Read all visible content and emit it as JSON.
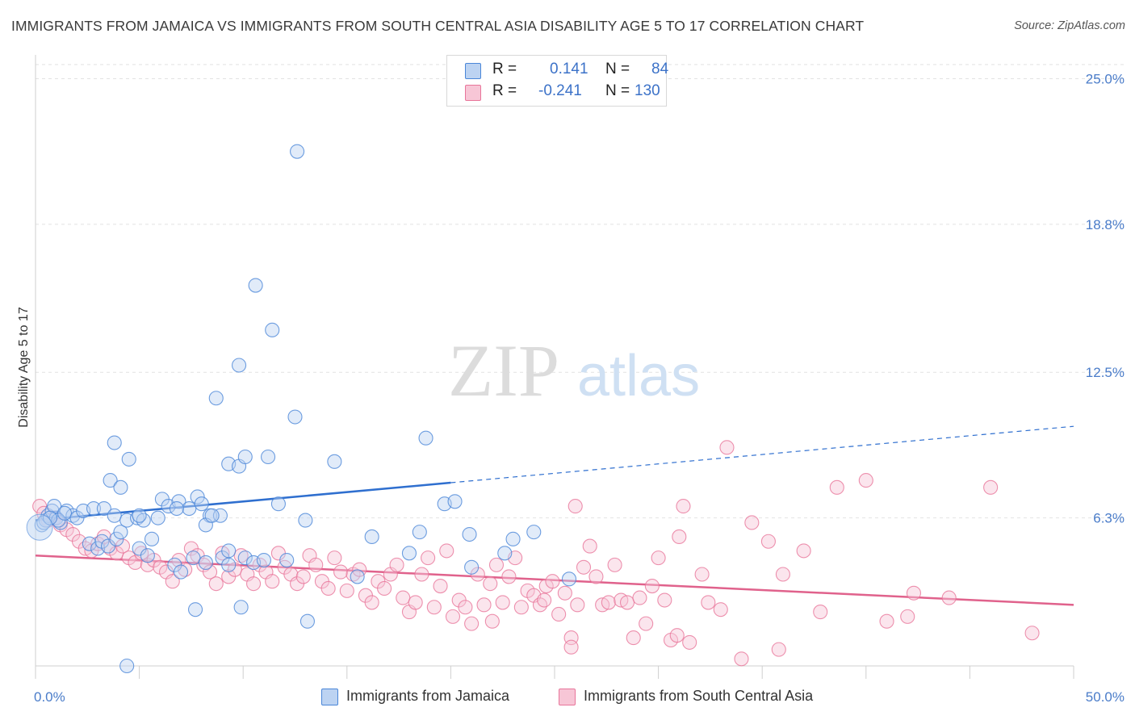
{
  "title": "IMMIGRANTS FROM JAMAICA VS IMMIGRANTS FROM SOUTH CENTRAL ASIA DISABILITY AGE 5 TO 17 CORRELATION CHART",
  "source": "Source: ZipAtlas.com",
  "watermark": {
    "zip": "ZIP",
    "atlas": "atlas"
  },
  "legend": {
    "r_label": "R =",
    "n_label": "N =",
    "series": [
      {
        "r": "0.141",
        "n": "84",
        "color": "#4a86d8",
        "fill": "#bcd3f2"
      },
      {
        "r": "-0.241",
        "n": "130",
        "color": "#e8759a",
        "fill": "#f7c6d6"
      }
    ]
  },
  "chart_data": {
    "type": "scatter",
    "title": "IMMIGRANTS FROM JAMAICA VS IMMIGRANTS FROM SOUTH CENTRAL ASIA DISABILITY AGE 5 TO 17 CORRELATION CHART",
    "xlabel": "",
    "ylabel": "Disability Age 5 to 17",
    "xlim": [
      0,
      50
    ],
    "ylim": [
      0,
      25.6
    ],
    "x_tick_labels": [
      "0.0%",
      "50.0%"
    ],
    "y_ticks": [
      6.3,
      12.5,
      18.8,
      25.0
    ],
    "y_tick_labels": [
      "6.3%",
      "12.5%",
      "18.8%",
      "25.0%"
    ],
    "grid": true,
    "legend_position": "top-center",
    "series": [
      {
        "name": "Immigrants from Jamaica",
        "color": "#4a86d8",
        "trend": {
          "x_solid": [
            0,
            20
          ],
          "y_solid": [
            6.2,
            7.8
          ],
          "x_dashed": [
            20,
            50
          ],
          "y_dashed": [
            7.8,
            10.2
          ]
        },
        "points": [
          [
            0.3,
            6.0
          ],
          [
            0.5,
            6.2
          ],
          [
            0.6,
            6.4
          ],
          [
            0.8,
            6.6
          ],
          [
            1.0,
            6.3
          ],
          [
            1.2,
            6.1
          ],
          [
            1.5,
            6.6
          ],
          [
            1.8,
            6.4
          ],
          [
            0.4,
            6.1
          ],
          [
            0.9,
            6.8
          ],
          [
            1.1,
            6.2
          ],
          [
            1.4,
            6.5
          ],
          [
            0.7,
            6.3
          ],
          [
            2.0,
            6.3
          ],
          [
            2.3,
            6.6
          ],
          [
            2.8,
            6.7
          ],
          [
            3.3,
            6.7
          ],
          [
            3.8,
            6.4
          ],
          [
            2.6,
            5.2
          ],
          [
            3.0,
            5.0
          ],
          [
            3.2,
            5.3
          ],
          [
            3.5,
            5.1
          ],
          [
            3.9,
            5.4
          ],
          [
            4.1,
            5.7
          ],
          [
            4.4,
            6.2
          ],
          [
            4.9,
            6.3
          ],
          [
            5.2,
            6.2
          ],
          [
            5.6,
            5.4
          ],
          [
            5.9,
            6.3
          ],
          [
            6.1,
            7.1
          ],
          [
            6.4,
            6.8
          ],
          [
            6.9,
            7.0
          ],
          [
            7.4,
            6.7
          ],
          [
            7.8,
            7.2
          ],
          [
            8.0,
            6.9
          ],
          [
            8.4,
            6.4
          ],
          [
            8.9,
            6.4
          ],
          [
            5.0,
            5.0
          ],
          [
            5.4,
            4.7
          ],
          [
            6.7,
            4.3
          ],
          [
            7.0,
            4.0
          ],
          [
            7.6,
            4.6
          ],
          [
            8.2,
            4.4
          ],
          [
            9.0,
            4.6
          ],
          [
            9.3,
            4.3
          ],
          [
            10.1,
            4.6
          ],
          [
            10.5,
            4.4
          ],
          [
            11.0,
            4.5
          ],
          [
            3.6,
            7.9
          ],
          [
            4.1,
            7.6
          ],
          [
            3.8,
            9.5
          ],
          [
            4.5,
            8.8
          ],
          [
            5.0,
            6.4
          ],
          [
            6.8,
            6.7
          ],
          [
            8.2,
            6.0
          ],
          [
            8.5,
            6.4
          ],
          [
            9.3,
            4.9
          ],
          [
            8.7,
            11.4
          ],
          [
            9.3,
            8.6
          ],
          [
            9.8,
            8.5
          ],
          [
            10.1,
            8.9
          ],
          [
            11.2,
            8.9
          ],
          [
            9.8,
            12.8
          ],
          [
            10.6,
            16.2
          ],
          [
            11.4,
            14.3
          ],
          [
            12.5,
            10.6
          ],
          [
            11.7,
            6.9
          ],
          [
            12.1,
            4.5
          ],
          [
            13.0,
            6.2
          ],
          [
            14.4,
            8.7
          ],
          [
            12.6,
            21.9
          ],
          [
            15.5,
            3.8
          ],
          [
            16.2,
            5.5
          ],
          [
            18.0,
            4.8
          ],
          [
            18.8,
            9.7
          ],
          [
            18.5,
            5.7
          ],
          [
            19.7,
            6.9
          ],
          [
            20.9,
            5.6
          ],
          [
            20.2,
            7.0
          ],
          [
            21.0,
            4.2
          ],
          [
            22.6,
            4.8
          ],
          [
            23.0,
            5.4
          ],
          [
            24.0,
            5.7
          ],
          [
            25.7,
            3.7
          ]
        ],
        "extra_points": [
          [
            7.7,
            2.4
          ],
          [
            9.9,
            2.5
          ],
          [
            13.1,
            1.9
          ],
          [
            4.4,
            0.0
          ]
        ]
      },
      {
        "name": "Immigrants from South Central Asia",
        "color": "#e8759a",
        "trend": {
          "x": [
            0,
            50
          ],
          "y": [
            4.7,
            2.6
          ]
        },
        "points": [
          [
            0.2,
            6.8
          ],
          [
            0.4,
            6.5
          ],
          [
            0.6,
            6.2
          ],
          [
            0.9,
            6.3
          ],
          [
            1.2,
            6.0
          ],
          [
            1.5,
            5.8
          ],
          [
            1.8,
            5.6
          ],
          [
            2.1,
            5.3
          ],
          [
            2.4,
            5.0
          ],
          [
            2.7,
            4.9
          ],
          [
            3.0,
            5.2
          ],
          [
            3.3,
            5.5
          ],
          [
            3.6,
            5.0
          ],
          [
            3.9,
            4.8
          ],
          [
            4.2,
            5.1
          ],
          [
            4.5,
            4.6
          ],
          [
            4.8,
            4.4
          ],
          [
            5.1,
            4.8
          ],
          [
            5.4,
            4.3
          ],
          [
            5.7,
            4.5
          ],
          [
            6.0,
            4.2
          ],
          [
            6.3,
            4.0
          ],
          [
            6.6,
            3.6
          ],
          [
            6.9,
            4.5
          ],
          [
            7.2,
            4.1
          ],
          [
            7.5,
            5.0
          ],
          [
            7.8,
            4.7
          ],
          [
            8.1,
            4.3
          ],
          [
            8.4,
            4.0
          ],
          [
            8.7,
            3.5
          ],
          [
            9.0,
            4.8
          ],
          [
            9.3,
            3.8
          ],
          [
            9.6,
            4.1
          ],
          [
            9.9,
            4.7
          ],
          [
            10.2,
            3.9
          ],
          [
            10.5,
            3.5
          ],
          [
            10.8,
            4.3
          ],
          [
            11.1,
            4.0
          ],
          [
            11.4,
            3.6
          ],
          [
            11.7,
            4.8
          ],
          [
            12.0,
            4.2
          ],
          [
            12.3,
            3.9
          ],
          [
            12.6,
            3.5
          ],
          [
            12.9,
            3.8
          ],
          [
            13.2,
            4.7
          ],
          [
            13.5,
            4.3
          ],
          [
            13.8,
            3.6
          ],
          [
            14.1,
            3.3
          ],
          [
            14.4,
            4.6
          ],
          [
            14.7,
            4.0
          ],
          [
            15.0,
            3.2
          ],
          [
            15.3,
            3.9
          ],
          [
            15.6,
            4.1
          ],
          [
            15.9,
            3.0
          ],
          [
            16.2,
            2.7
          ],
          [
            16.5,
            3.6
          ],
          [
            16.8,
            3.3
          ],
          [
            17.1,
            3.9
          ],
          [
            17.4,
            4.3
          ],
          [
            17.7,
            2.9
          ],
          [
            18.0,
            2.3
          ],
          [
            18.3,
            2.7
          ],
          [
            18.6,
            3.9
          ],
          [
            18.9,
            4.6
          ],
          [
            19.2,
            2.5
          ],
          [
            19.5,
            3.4
          ],
          [
            19.8,
            4.9
          ],
          [
            20.1,
            2.1
          ],
          [
            20.4,
            2.8
          ],
          [
            20.7,
            2.5
          ],
          [
            21.0,
            1.8
          ],
          [
            21.3,
            3.9
          ],
          [
            21.6,
            2.6
          ],
          [
            21.9,
            3.5
          ],
          [
            22.2,
            4.3
          ],
          [
            22.5,
            2.7
          ],
          [
            22.8,
            3.8
          ],
          [
            23.1,
            4.6
          ],
          [
            23.4,
            2.5
          ],
          [
            23.7,
            3.2
          ],
          [
            24.0,
            3.0
          ],
          [
            24.3,
            2.6
          ],
          [
            24.6,
            3.4
          ],
          [
            24.9,
            3.6
          ],
          [
            25.2,
            2.2
          ],
          [
            25.5,
            3.1
          ],
          [
            25.8,
            1.2
          ],
          [
            26.1,
            2.6
          ],
          [
            26.4,
            4.2
          ],
          [
            26.7,
            5.1
          ],
          [
            27.0,
            3.8
          ],
          [
            27.3,
            2.6
          ],
          [
            27.6,
            2.7
          ],
          [
            27.9,
            4.3
          ],
          [
            28.2,
            2.8
          ],
          [
            28.5,
            2.7
          ],
          [
            28.8,
            1.2
          ],
          [
            29.1,
            2.9
          ],
          [
            29.4,
            1.8
          ],
          [
            29.7,
            3.4
          ],
          [
            30.0,
            4.6
          ],
          [
            30.3,
            2.8
          ],
          [
            30.6,
            1.1
          ],
          [
            30.9,
            1.3
          ],
          [
            31.2,
            6.8
          ],
          [
            31.5,
            1.0
          ],
          [
            32.1,
            3.9
          ],
          [
            32.4,
            2.7
          ],
          [
            33.0,
            2.4
          ],
          [
            33.3,
            9.3
          ],
          [
            34.0,
            0.3
          ],
          [
            34.5,
            6.1
          ],
          [
            35.3,
            5.3
          ],
          [
            35.8,
            0.7
          ],
          [
            36.0,
            3.9
          ],
          [
            37.0,
            4.9
          ],
          [
            37.8,
            2.3
          ],
          [
            38.6,
            7.6
          ],
          [
            40.0,
            7.9
          ],
          [
            41.0,
            1.9
          ],
          [
            42.0,
            2.1
          ],
          [
            42.3,
            3.1
          ],
          [
            44.0,
            2.9
          ],
          [
            46.0,
            7.6
          ],
          [
            48.0,
            1.4
          ],
          [
            31.0,
            5.5
          ],
          [
            26.0,
            6.8
          ],
          [
            24.5,
            2.8
          ],
          [
            22.0,
            1.9
          ],
          [
            25.8,
            0.8
          ]
        ]
      }
    ]
  },
  "bottom_legend": [
    {
      "label": "Immigrants from Jamaica"
    },
    {
      "label": "Immigrants from South Central Asia"
    }
  ]
}
